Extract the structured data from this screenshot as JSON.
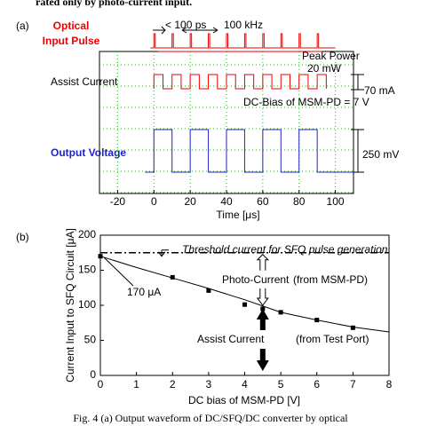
{
  "header_text": "rated only by photo-current input.",
  "chart_data": [
    {
      "type": "waveform",
      "panel_label": "(a)",
      "labels": {
        "optical": "Optical",
        "input_pulse": "Input Pulse",
        "pulse_width": "< 100 ps",
        "rate": "100 kHz",
        "peak_power": "Peak Power",
        "peak_value": "20 mW",
        "assist": "Assist Current",
        "assist_amp": "70 mA",
        "bias": "DC-Bias of MSM-PD = 7 V",
        "output": "Output Voltage",
        "output_amp": "250 mV"
      },
      "x_label": "Time [μs]",
      "xlim": [
        -30,
        110
      ],
      "xticks": [
        -20,
        0,
        20,
        40,
        60,
        80,
        100
      ],
      "grid": true
    },
    {
      "type": "line",
      "panel_label": "(b)",
      "x_label": "DC bias of MSM-PD [V]",
      "y_label": "Current Input to SFQ Circuit [μA]",
      "xlim": [
        0,
        8
      ],
      "xticks": [
        0,
        1,
        2,
        3,
        4,
        5,
        6,
        7,
        8
      ],
      "ylim": [
        0,
        200
      ],
      "yticks": [
        0,
        50,
        100,
        150,
        200
      ],
      "threshold": 175,
      "threshold_label": "Threshold current for SFQ pulse generation",
      "annotations": [
        "170 μA",
        "Photo-Current",
        "(from MSM-PD)",
        "Assist Current",
        "(from Test Port)"
      ],
      "series": [
        {
          "x": [
            0,
            1,
            2,
            3,
            4,
            5,
            6,
            7,
            8
          ],
          "values": [
            170,
            154,
            139,
            124,
            108,
            90,
            79,
            69,
            62
          ],
          "color": "#000000",
          "marker": false
        },
        {
          "x": [
            0,
            2,
            3,
            4,
            4.5,
            5,
            6,
            7
          ],
          "values": [
            170,
            140,
            121,
            101,
            95,
            90,
            79,
            68
          ],
          "color": "#000000",
          "marker": true
        }
      ]
    }
  ],
  "caption": "Fig. 4  (a) Output waveform of DC/SFQ/DC converter by optical"
}
